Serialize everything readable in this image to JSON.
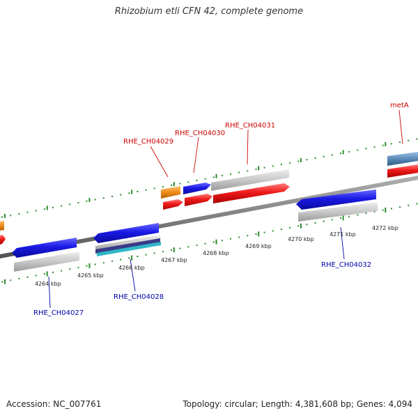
{
  "title": "Rhizobium etli CFN 42, complete genome",
  "footer": {
    "accession": "Accession: NC_007761",
    "topology": "Topology: circular; Length: 4,381,608 bp; Genes: 4,094"
  },
  "scale_labels": [
    "4264 kbp",
    "4265 kbp",
    "4266 kbp",
    "4267 kbp",
    "4268 kbp",
    "4269 kbp",
    "4270 kbp",
    "4271 kbp",
    "4272 kbp"
  ],
  "gene_labels": {
    "rhe_ch04027": "RHE_CH04027",
    "rhe_ch04028": "RHE_CH04028",
    "rhe_ch04029": "RHE_CH04029",
    "rhe_ch04030": "RHE_CH04030",
    "rhe_ch04031": "RHE_CH04031",
    "rhe_ch04032": "RHE_CH04032",
    "meta": "metA"
  },
  "colors": {
    "forward_label": "#cc0000",
    "reverse_label": "#0000aa",
    "backbone": "#808080",
    "ticks": "#2a8a2a",
    "cds_blue": "#1a1ae6",
    "cds_red": "#e61a1a",
    "cds_gray": "#c8c8c8",
    "cds_orange": "#f08c1a",
    "cds_steel": "#5a8ab8",
    "cds_cyan": "#30b8c8"
  }
}
